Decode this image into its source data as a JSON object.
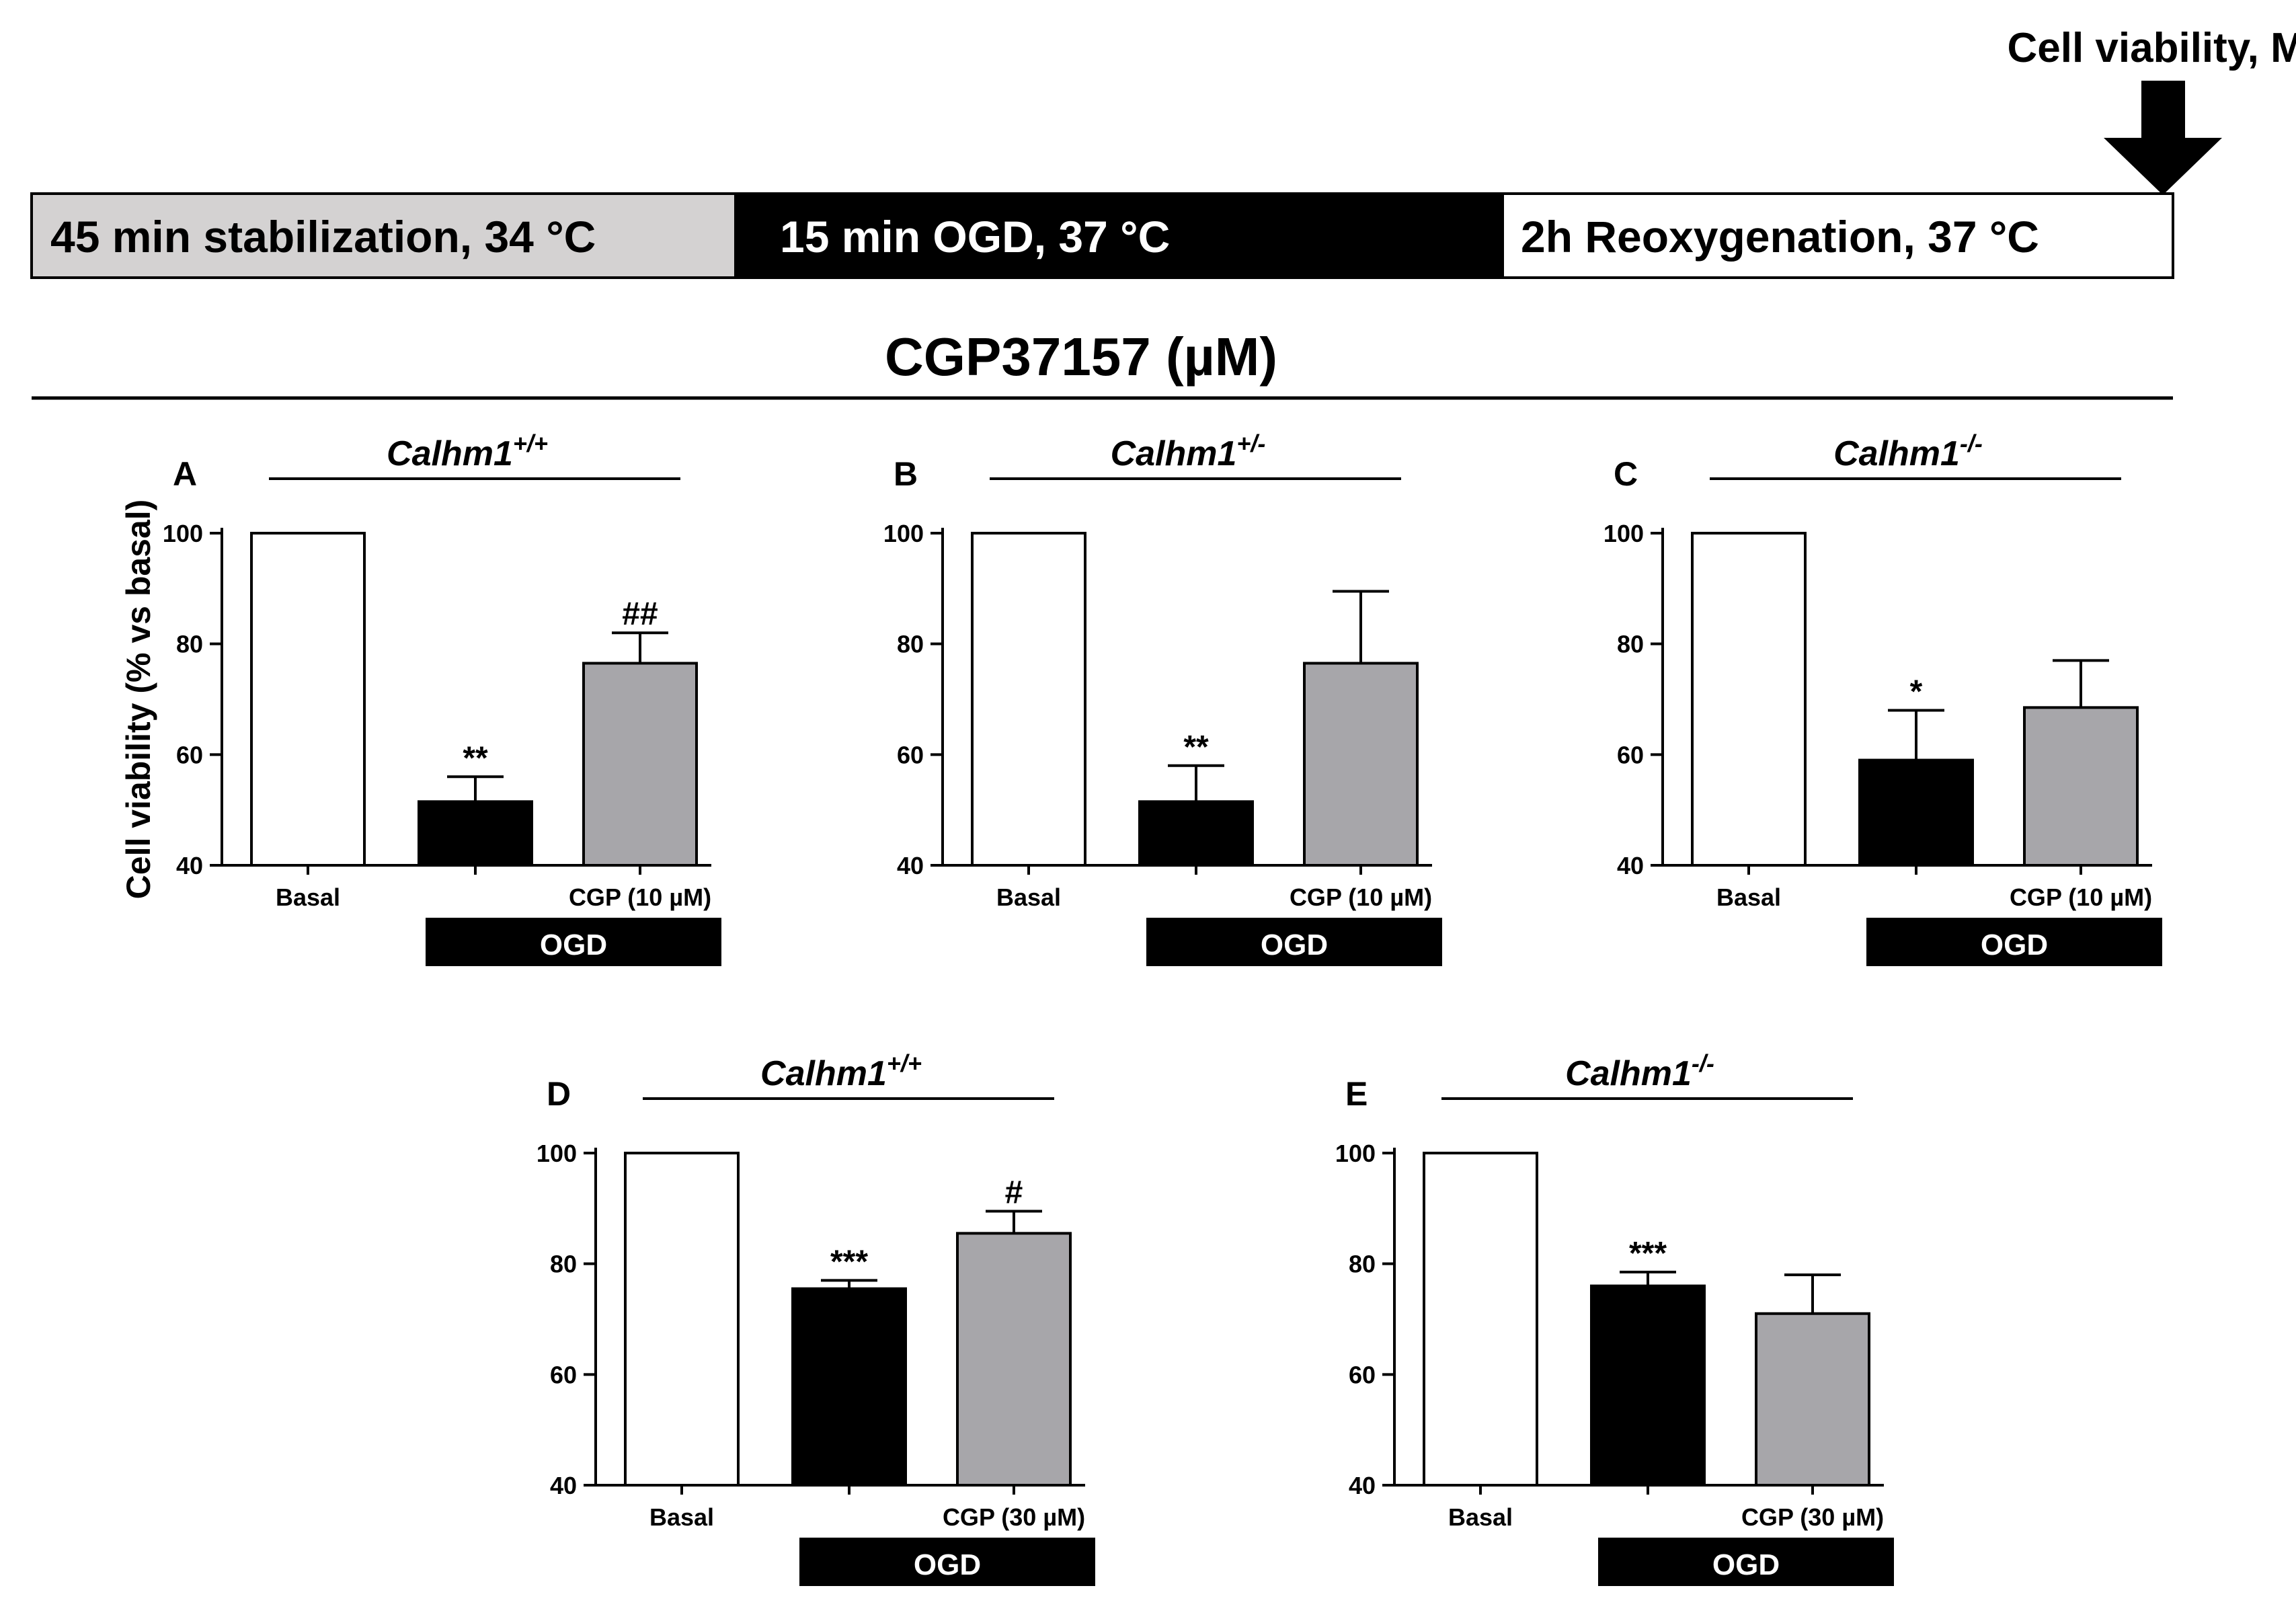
{
  "protocol": {
    "top_label": "Cell viability, MTT",
    "segments": [
      {
        "label": "45 min stabilization, 34 °C",
        "fill": "#d4d2d2",
        "text_color": "#000000"
      },
      {
        "label": "15 min  OGD, 37 °C",
        "fill": "#000000",
        "text_color": "#ffffff"
      },
      {
        "label": "2h Reoxygenation, 37 °C",
        "fill": "#ffffff",
        "text_color": "#000000"
      }
    ]
  },
  "section_title": "CGP37157 (µM)",
  "colors": {
    "basal": "#ffffff",
    "ogd": "#000000",
    "cgp": "#a7a6aa",
    "axis": "#000000"
  },
  "chart_data": [
    {
      "panel": "A",
      "type": "bar",
      "genotype": "Calhm1",
      "genotype_sup": "+/+",
      "ylabel": "Cell viability (% vs basal)",
      "ylim": [
        40,
        100
      ],
      "yticks": [
        40,
        60,
        80,
        100
      ],
      "categories": [
        "Basal",
        "",
        "CGP (10 µM)"
      ],
      "values": [
        100,
        51.5,
        76.5
      ],
      "errors": [
        0,
        4.5,
        5.5
      ],
      "annotations": [
        "",
        "**",
        "##"
      ],
      "group_label": "OGD"
    },
    {
      "panel": "B",
      "type": "bar",
      "genotype": "Calhm1",
      "genotype_sup": "+/-",
      "ylabel": "",
      "ylim": [
        40,
        100
      ],
      "yticks": [
        40,
        60,
        80,
        100
      ],
      "categories": [
        "Basal",
        "",
        "CGP (10 µM)"
      ],
      "values": [
        100,
        51.5,
        76.5
      ],
      "errors": [
        0,
        6.5,
        13
      ],
      "annotations": [
        "",
        "**",
        ""
      ],
      "group_label": "OGD"
    },
    {
      "panel": "C",
      "type": "bar",
      "genotype": "Calhm1",
      "genotype_sup": "-/-",
      "ylabel": "",
      "ylim": [
        40,
        100
      ],
      "yticks": [
        40,
        60,
        80,
        100
      ],
      "categories": [
        "Basal",
        "",
        "CGP (10 µM)"
      ],
      "values": [
        100,
        59,
        68.5
      ],
      "errors": [
        0,
        9,
        8.5
      ],
      "annotations": [
        "",
        "*",
        ""
      ],
      "group_label": "OGD"
    },
    {
      "panel": "D",
      "type": "bar",
      "genotype": "Calhm1",
      "genotype_sup": "+/+",
      "ylabel": "",
      "ylim": [
        40,
        100
      ],
      "yticks": [
        40,
        60,
        80,
        100
      ],
      "categories": [
        "Basal",
        "",
        "CGP (30 µM)"
      ],
      "values": [
        100,
        75.5,
        85.5
      ],
      "errors": [
        0,
        1.5,
        4
      ],
      "annotations": [
        "",
        "***",
        "#"
      ],
      "group_label": "OGD"
    },
    {
      "panel": "E",
      "type": "bar",
      "genotype": "Calhm1",
      "genotype_sup": "-/-",
      "ylabel": "",
      "ylim": [
        40,
        100
      ],
      "yticks": [
        40,
        60,
        80,
        100
      ],
      "categories": [
        "Basal",
        "",
        "CGP (30 µM)"
      ],
      "values": [
        100,
        76,
        71
      ],
      "errors": [
        0,
        2.5,
        7
      ],
      "annotations": [
        "",
        "***",
        ""
      ],
      "group_label": "OGD"
    }
  ]
}
